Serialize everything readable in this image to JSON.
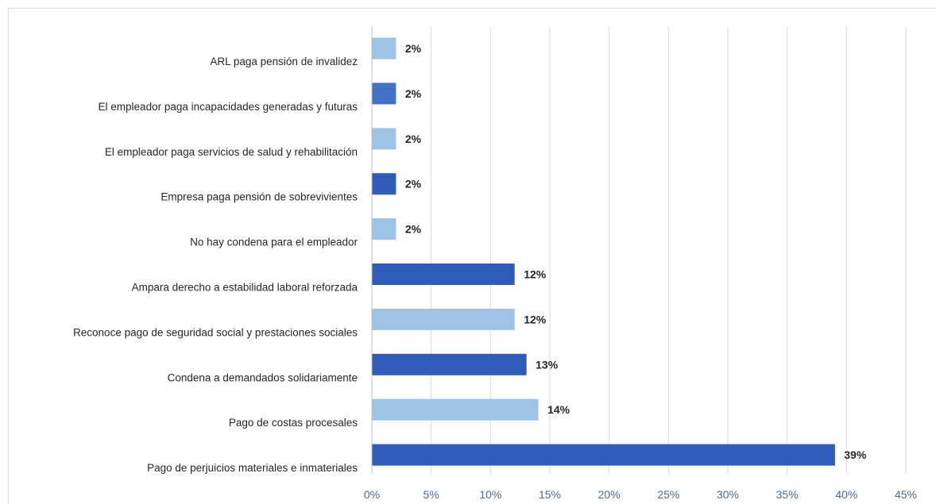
{
  "chart_data": {
    "type": "bar",
    "orientation": "horizontal",
    "title": "",
    "xlabel": "",
    "ylabel": "",
    "xlim": [
      0,
      45
    ],
    "x_ticks": [
      "0%",
      "5%",
      "10%",
      "15%",
      "20%",
      "25%",
      "30%",
      "35%",
      "40%",
      "45%"
    ],
    "grid": true,
    "legend": "none",
    "categories": [
      "ARL paga pensión de invalidez",
      "El empleador paga incapacidades generadas y futuras",
      "El empleador paga servicios de salud y rehabilitación",
      "Empresa paga pensión de sobrevivientes",
      "No hay condena para el empleador",
      "Ampara derecho a estabilidad laboral reforzada",
      "Reconoce pago de seguridad social y prestaciones sociales",
      "Condena a demandados solidariamente",
      "Pago de costas procesales",
      "Pago de perjuicios materiales e inmateriales"
    ],
    "values": [
      2,
      2,
      2,
      2,
      2,
      12,
      12,
      13,
      14,
      39
    ],
    "data_labels": [
      "2%",
      "2%",
      "2%",
      "2%",
      "2%",
      "12%",
      "12%",
      "13%",
      "14%",
      "39%"
    ],
    "bar_colors": [
      "#9dc3e6",
      "#4472c4",
      "#9dc3e6",
      "#2e5cb8",
      "#9dc3e6",
      "#2e5cb8",
      "#9dc3e6",
      "#2e5cb8",
      "#9dc3e6",
      "#2e5cb8"
    ]
  }
}
